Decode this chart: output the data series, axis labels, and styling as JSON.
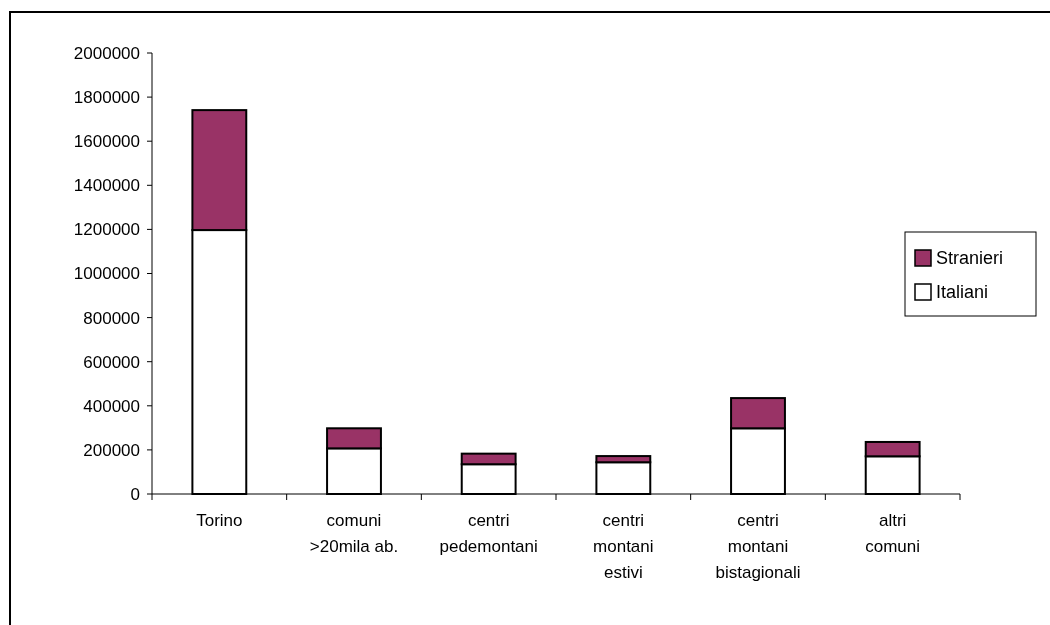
{
  "chart_data": {
    "type": "bar",
    "stacked": true,
    "categories": [
      "Torino",
      "comuni >20mila ab.",
      "centri pedemontani",
      "centri montani estivi",
      "centri montani bistagionali",
      "altri comuni"
    ],
    "series": [
      {
        "name": "Italiani",
        "color": "#ffffff",
        "values": [
          1197000,
          207000,
          135000,
          144000,
          298000,
          171000
        ]
      },
      {
        "name": "Stranieri",
        "color": "#993366",
        "values": [
          544000,
          91000,
          48000,
          28000,
          137000,
          65000
        ]
      }
    ],
    "ylim": [
      0,
      2000000
    ],
    "yticks": [
      0,
      200000,
      400000,
      600000,
      800000,
      1000000,
      1200000,
      1400000,
      1600000,
      1800000,
      2000000
    ],
    "legend": "right",
    "grid": false
  }
}
